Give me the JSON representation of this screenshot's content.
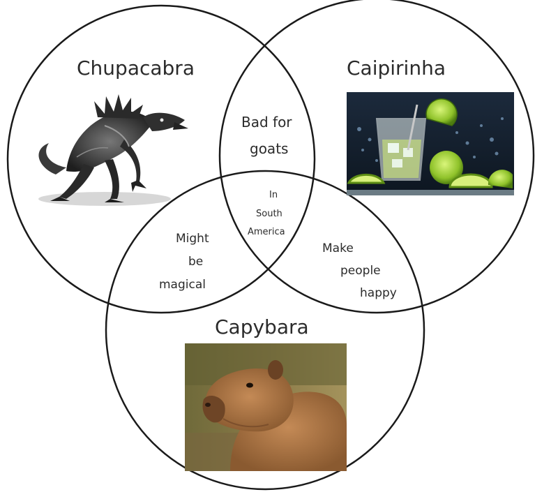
{
  "sets": {
    "chupacabra": "Chupacabra",
    "caipirinha": "Caipirinha",
    "capybara": "Capybara"
  },
  "overlaps": {
    "chupacabra_caipirinha": [
      "Bad for",
      "goats"
    ],
    "all_three": [
      "In",
      "South",
      "America"
    ],
    "chupacabra_capybara": [
      "Might",
      "be",
      "magical"
    ],
    "caipirinha_capybara": [
      "Make",
      "people",
      "happy"
    ]
  },
  "images": {
    "chupacabra": "chupacabra-creature",
    "caipirinha": "caipirinha-cocktail-with-limes",
    "capybara": "capybara-photo"
  },
  "colors": {
    "circle_stroke": "#1a1a1a",
    "background": "#ffffff",
    "text": "#2b2b2b"
  }
}
